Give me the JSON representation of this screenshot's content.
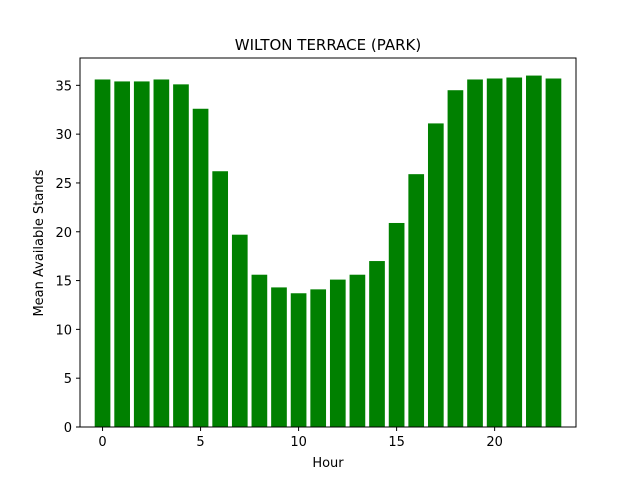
{
  "chart_data": {
    "type": "bar",
    "title": "WILTON TERRACE (PARK)",
    "xlabel": "Hour",
    "ylabel": "Mean Available Stands",
    "x": [
      0,
      1,
      2,
      3,
      4,
      5,
      6,
      7,
      8,
      9,
      10,
      11,
      12,
      13,
      14,
      15,
      16,
      17,
      18,
      19,
      20,
      21,
      22,
      23
    ],
    "values": [
      35.6,
      35.4,
      35.4,
      35.6,
      35.1,
      32.6,
      26.2,
      19.7,
      15.6,
      14.3,
      13.7,
      14.1,
      15.1,
      15.6,
      17.0,
      20.9,
      25.9,
      31.1,
      34.5,
      35.6,
      35.7,
      35.8,
      36.0,
      35.7
    ],
    "xlim": [
      -1.15,
      24.15
    ],
    "ylim": [
      0,
      37.8
    ],
    "xticks": [
      0,
      5,
      10,
      15,
      20
    ],
    "yticks": [
      0,
      5,
      10,
      15,
      20,
      25,
      30,
      35
    ],
    "bar_color": "#008000",
    "grid": false,
    "legend": "none"
  }
}
